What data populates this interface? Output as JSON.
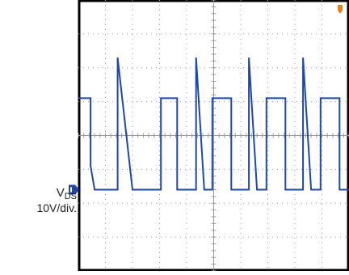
{
  "chart_data": {
    "type": "line",
    "title": "",
    "xlabel": "",
    "ylabel": "",
    "divisions": {
      "x": 10,
      "y": 8
    },
    "grid": true,
    "ylim": [
      0,
      8
    ],
    "xlim": [
      0,
      10
    ],
    "series": [
      {
        "name": "",
        "color": "#1f47a6",
        "x": [
          0.0,
          0.45,
          0.45,
          0.6,
          1.0,
          1.45,
          1.45,
          2.0,
          2.5,
          2.9,
          3.05,
          3.05,
          3.35,
          3.65,
          3.65,
          4.0,
          4.35,
          4.35,
          4.65,
          4.95,
          4.95,
          5.3,
          5.65,
          5.65,
          6.0,
          6.3,
          6.3,
          6.6,
          6.95,
          6.95,
          7.3,
          7.65,
          7.65,
          7.95,
          8.3,
          8.3,
          8.6,
          8.95,
          8.95,
          9.3,
          9.65,
          9.65,
          10.0
        ],
        "y": [
          5.1,
          5.1,
          3.1,
          2.4,
          2.4,
          2.4,
          6.3,
          2.4,
          2.4,
          2.4,
          2.4,
          5.1,
          5.1,
          5.1,
          2.4,
          2.4,
          2.4,
          6.3,
          2.4,
          2.4,
          5.1,
          5.1,
          5.1,
          2.4,
          2.4,
          2.4,
          6.3,
          2.4,
          2.4,
          5.1,
          5.1,
          5.1,
          2.4,
          2.4,
          2.4,
          6.3,
          2.4,
          2.4,
          5.1,
          5.1,
          5.1,
          2.4,
          2.4
        ]
      }
    ],
    "ground_marker_level": 2.4,
    "trigger_marker_color": "#e8821e"
  },
  "labels": {
    "signal_name": "V",
    "signal_subscript": "DS",
    "scale": "10V/div."
  }
}
